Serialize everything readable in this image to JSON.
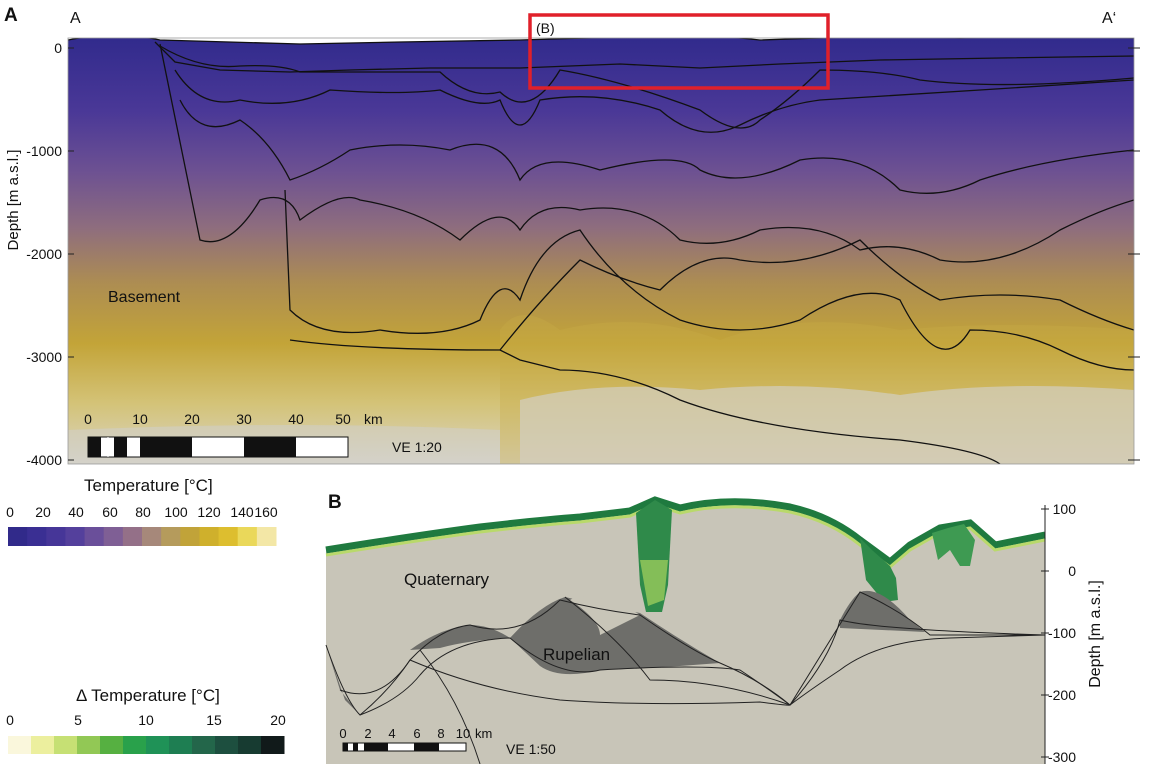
{
  "panel_a": {
    "letter": "A",
    "endpoint_left": "A",
    "endpoint_right": "A‘",
    "inset_marker": "(B)",
    "y_axis_title": "Depth [m a.s.l.]",
    "y_ticks": [
      "0",
      "-1000",
      "-2000",
      "-3000",
      "-4000"
    ],
    "unit_label": "Basement",
    "scalebar_ticks": [
      "0",
      "10",
      "20",
      "30",
      "40",
      "50"
    ],
    "scalebar_unit": "km",
    "vertical_exaggeration": "VE 1:20",
    "inset_box_color": "#e0202a"
  },
  "temperature_legend": {
    "title": "Temperature [°C]",
    "ticks": [
      "0",
      "20",
      "40",
      "60",
      "80",
      "100",
      "120",
      "140",
      "160"
    ],
    "colors": [
      "#312a8a",
      "#3a2f93",
      "#463698",
      "#54409c",
      "#6a4f9a",
      "#7f5f95",
      "#947088",
      "#a6887a",
      "#b59b5c",
      "#c1a339",
      "#cfb02c",
      "#ddbe2f",
      "#ead85a",
      "#f3e7a6"
    ]
  },
  "delta_legend": {
    "title": "Δ Temperature [°C]",
    "ticks": [
      "0",
      "5",
      "10",
      "15",
      "20"
    ],
    "colors": [
      "#faf7dc",
      "#ecef9e",
      "#c6e074",
      "#92c855",
      "#56b041",
      "#29a14b",
      "#1f9257",
      "#1e7e52",
      "#23664a",
      "#1d4f3f",
      "#173b31",
      "#111a1a"
    ]
  },
  "panel_b": {
    "letter": "B",
    "y_axis_title": "Depth [m a.s.l.]",
    "y_ticks": [
      "100",
      "0",
      "-100",
      "-200",
      "-300"
    ],
    "unit_label_1": "Quaternary",
    "unit_label_2": "Rupelian",
    "scalebar_ticks": [
      "0",
      "2",
      "4",
      "6",
      "8",
      "10"
    ],
    "scalebar_unit": "km",
    "vertical_exaggeration": "VE 1:50"
  }
}
